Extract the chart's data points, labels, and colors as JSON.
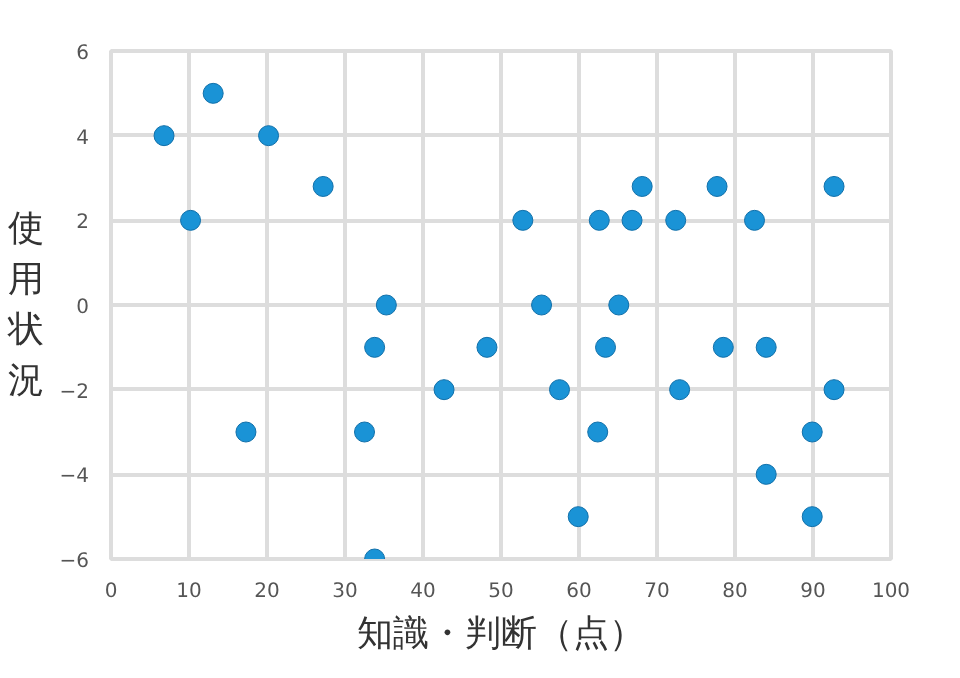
{
  "chart_data": {
    "type": "scatter",
    "xlabel": "知識・判断（点）",
    "ylabel": "使用状況",
    "x": [
      6.8,
      10.2,
      13.1,
      20.2,
      27.2,
      35.3,
      33.8,
      17.3,
      32.5,
      42.7,
      48.2,
      33.8,
      68.1,
      77.7,
      92.7,
      52.8,
      62.6,
      66.8,
      72.4,
      82.5,
      55.2,
      65.1,
      63.4,
      78.5,
      84.0,
      57.5,
      72.9,
      92.7,
      62.4,
      89.9,
      84.0,
      59.9,
      89.9
    ],
    "series": [
      {
        "color": "#1a93d6",
        "values": [
          4,
          2,
          5,
          4,
          2.8,
          0,
          -1,
          -3,
          -3,
          -2,
          -1,
          -6,
          2.8,
          2.8,
          2.8,
          2,
          2,
          2,
          2,
          2,
          0,
          0,
          -1,
          -1,
          -1,
          -2,
          -2,
          -2,
          -3,
          -3,
          -4,
          -5,
          -5
        ]
      }
    ],
    "xlim": [
      0,
      100
    ],
    "ylim": [
      -6,
      6
    ],
    "xticks": [
      0,
      10,
      20,
      30,
      40,
      50,
      60,
      70,
      80,
      90,
      100
    ],
    "yticks": [
      -6,
      -4,
      -2,
      0,
      2,
      4,
      6
    ],
    "grid": true,
    "marker": "circle"
  }
}
